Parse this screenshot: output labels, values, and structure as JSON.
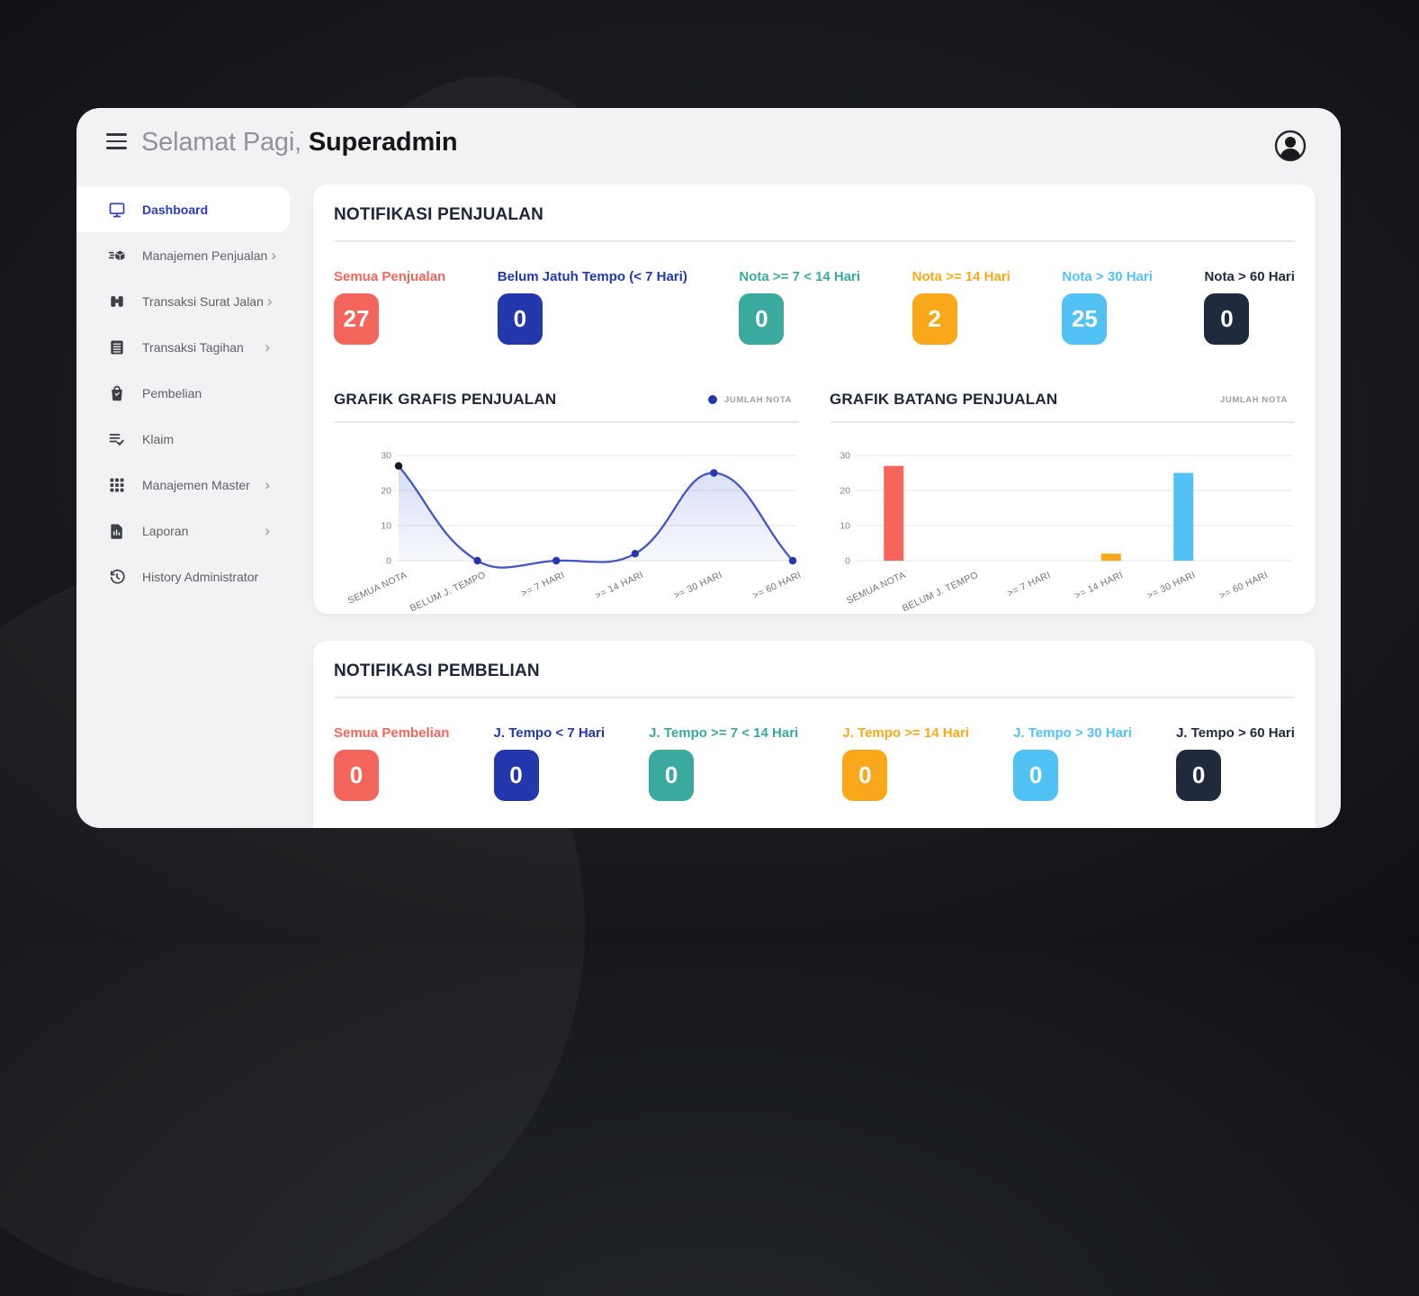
{
  "header": {
    "greeting": "Selamat Pagi,",
    "username": "Superadmin"
  },
  "sidebar": {
    "items": [
      {
        "label": "Dashboard",
        "icon": "monitor",
        "active": true,
        "chevron": false
      },
      {
        "label": "Manajemen Penjualan",
        "icon": "package-fast",
        "active": false,
        "chevron": true
      },
      {
        "label": "Transaksi Surat Jalan",
        "icon": "binoculars",
        "active": false,
        "chevron": true
      },
      {
        "label": "Transaksi Tagihan",
        "icon": "invoice-list",
        "active": false,
        "chevron": true
      },
      {
        "label": "Pembelian",
        "icon": "shopping-bag",
        "active": false,
        "chevron": false
      },
      {
        "label": "Klaim",
        "icon": "list-check",
        "active": false,
        "chevron": false
      },
      {
        "label": "Manajemen Master",
        "icon": "grid",
        "active": false,
        "chevron": true
      },
      {
        "label": "Laporan",
        "icon": "report-file",
        "active": false,
        "chevron": true
      },
      {
        "label": "History Administrator",
        "icon": "history-clock",
        "active": false,
        "chevron": false
      }
    ]
  },
  "sales": {
    "title": "NOTIFIKASI PENJUALAN",
    "stats": [
      {
        "label": "Semua Penjualan",
        "value": "27",
        "color": "#f4655c"
      },
      {
        "label": "Belum Jatuh Tempo (< 7 Hari)",
        "value": "0",
        "color": "#2338ac"
      },
      {
        "label": "Nota >= 7 < 14 Hari",
        "value": "0",
        "color": "#3aa99e"
      },
      {
        "label": "Nota >= 14 Hari",
        "value": "2",
        "color": "#f9a81b"
      },
      {
        "label": "Nota > 30 Hari",
        "value": "25",
        "color": "#52c2f5"
      },
      {
        "label": "Nota > 60 Hari",
        "value": "0",
        "color": "#1f2a3c"
      }
    ]
  },
  "purchases": {
    "title": "NOTIFIKASI PEMBELIAN",
    "stats": [
      {
        "label": "Semua Pembelian",
        "value": "0",
        "color": "#f4655c"
      },
      {
        "label": "J. Tempo < 7 Hari",
        "value": "0",
        "color": "#2338ac"
      },
      {
        "label": "J. Tempo >= 7 < 14 Hari",
        "value": "0",
        "color": "#3aa99e"
      },
      {
        "label": "J. Tempo >= 14 Hari",
        "value": "0",
        "color": "#f9a81b"
      },
      {
        "label": "J. Tempo > 30 Hari",
        "value": "0",
        "color": "#52c2f5"
      },
      {
        "label": "J. Tempo > 60 Hari",
        "value": "0",
        "color": "#1f2a3c"
      }
    ]
  },
  "chart_data": [
    {
      "type": "line",
      "title": "GRAFIK GRAFIS PENJUALAN",
      "legend": "JUMLAH NOTA",
      "categories": [
        "SEMUA NOTA",
        "BELUM J. TEMPO",
        ">= 7 HARI",
        ">= 14 HARI",
        ">= 30 HARI",
        ">= 60 HARI"
      ],
      "values": [
        27,
        0,
        0,
        2,
        25,
        0
      ],
      "ylim": [
        0,
        30
      ],
      "yticks": [
        0,
        10,
        20,
        30
      ],
      "line_color": "#4356c5",
      "point_color": "#2338ac",
      "first_point_color": "#15181c",
      "grid": true,
      "legend_position": "top-right"
    },
    {
      "type": "bar",
      "title": "GRAFIK BATANG PENJUALAN",
      "legend": "JUMLAH NOTA",
      "categories": [
        "SEMUA NOTA",
        "BELUM J. TEMPO",
        ">= 7 HARI",
        ">= 14 HARI",
        ">= 30 HARI",
        ">= 60 HARI"
      ],
      "values": [
        27,
        0,
        0,
        2,
        25,
        0
      ],
      "bar_colors": [
        "#f4655c",
        "#2338ac",
        "#3aa99e",
        "#f9a81b",
        "#52c2f5",
        "#1f2a3c"
      ],
      "ylim": [
        0,
        30
      ],
      "yticks": [
        0,
        10,
        20,
        30
      ],
      "grid": true,
      "legend_position": "top-right"
    }
  ]
}
